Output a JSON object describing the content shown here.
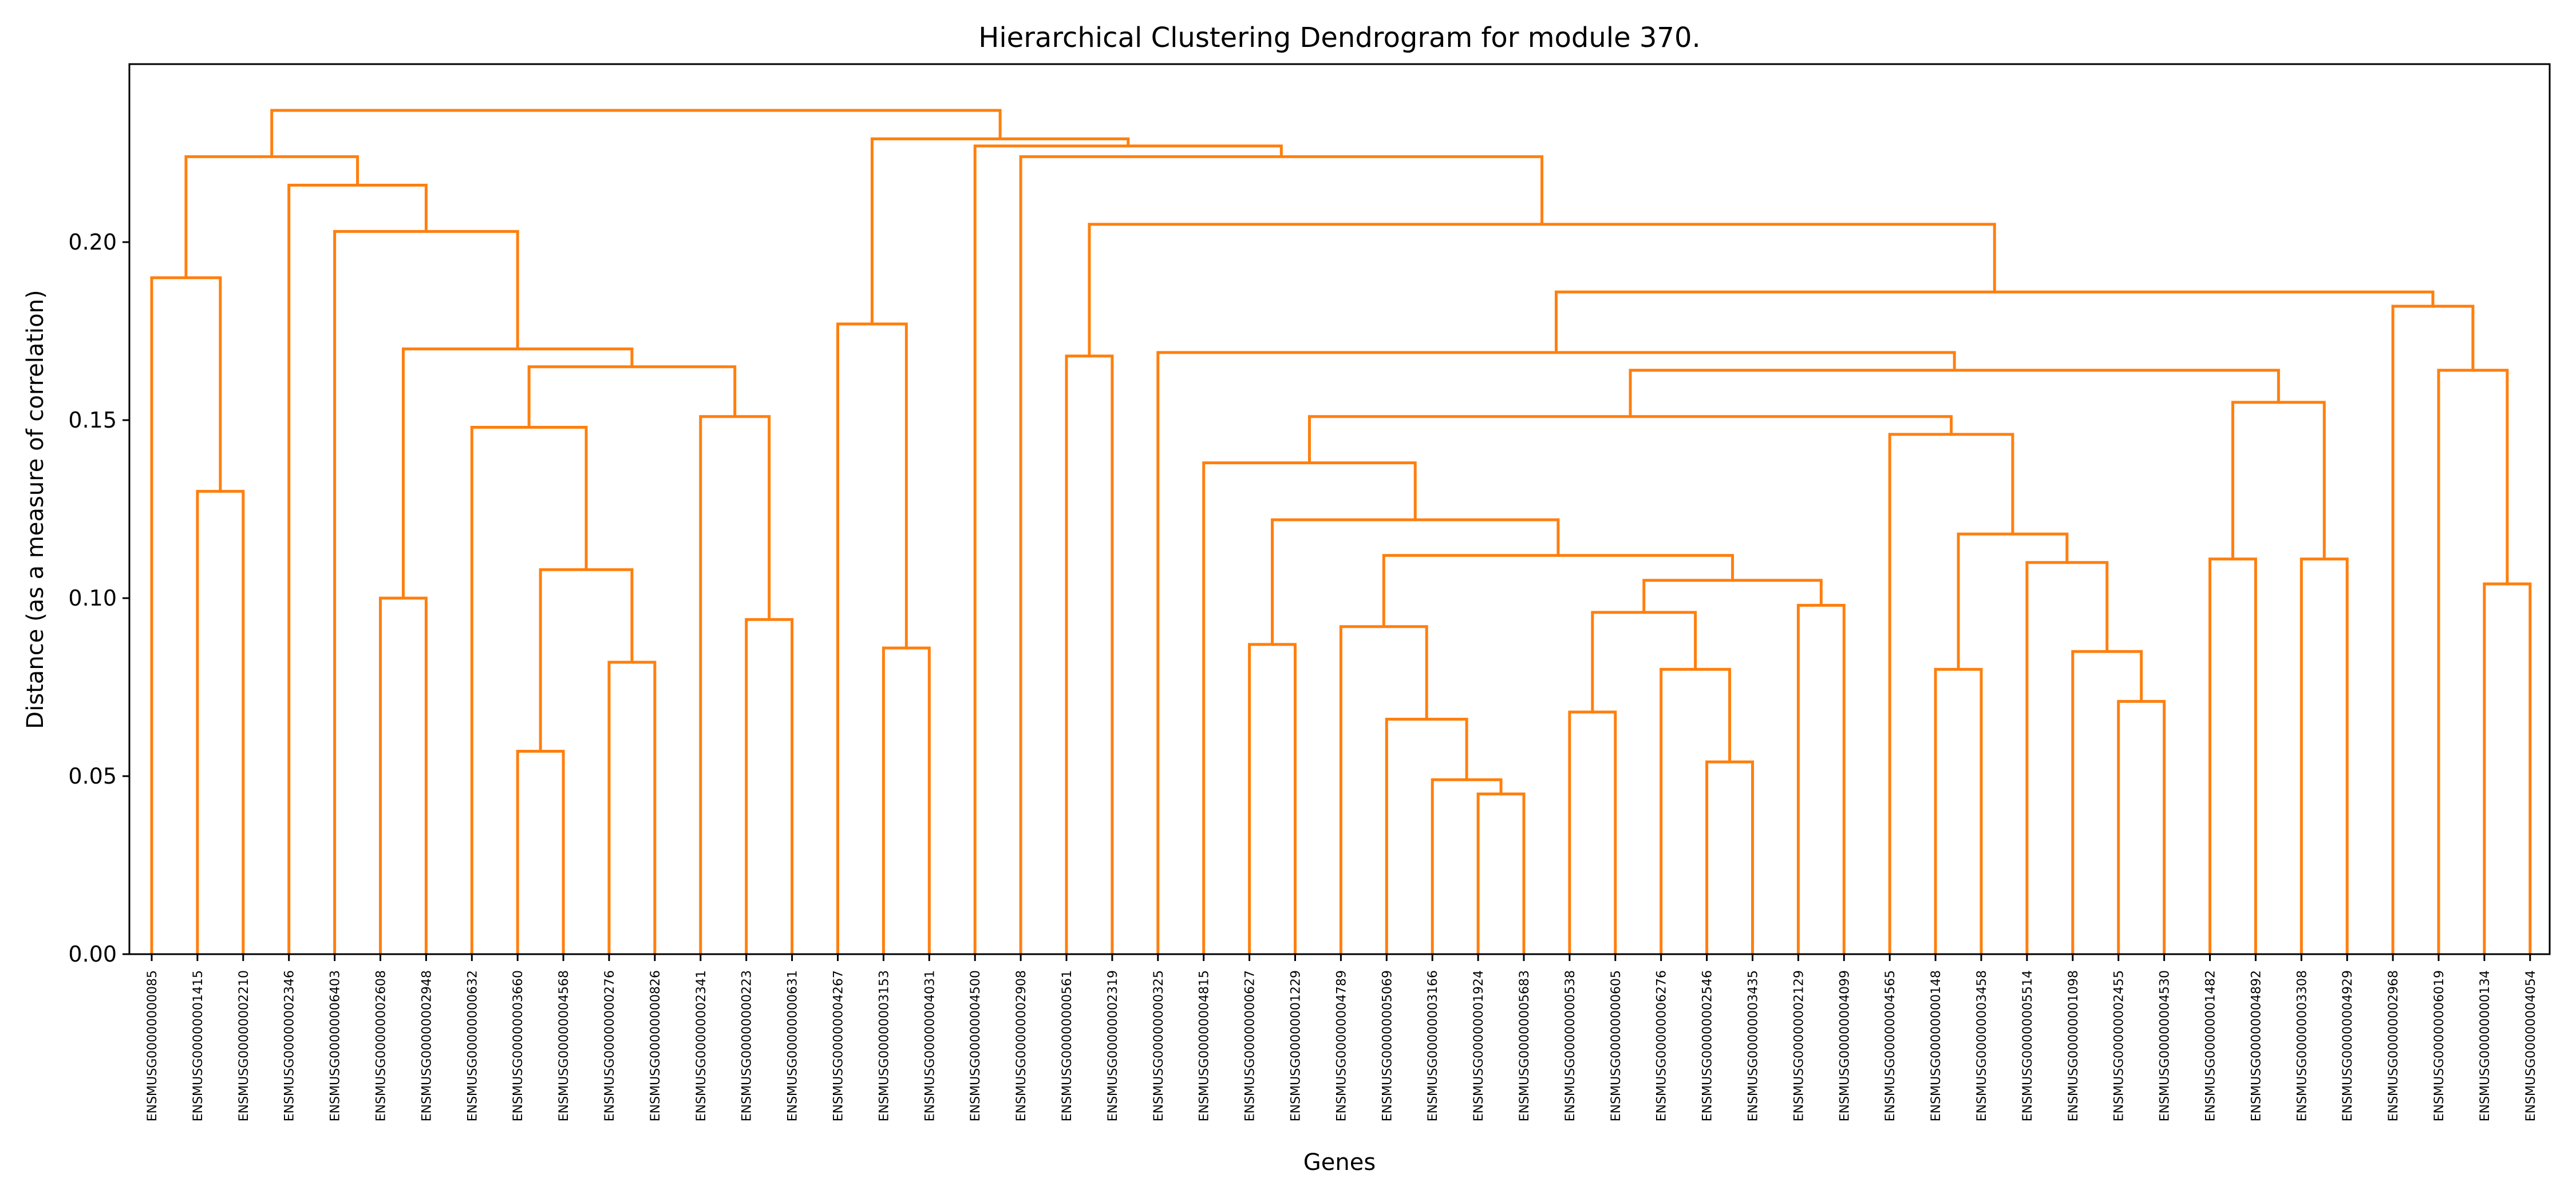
{
  "chart_data": {
    "type": "dendrogram",
    "title": "Hierarchical Clustering Dendrogram for module 370.",
    "xlabel": "Genes",
    "ylabel": "Distance (as a measure of correlation)",
    "ylim": [
      0,
      0.25
    ],
    "yticks": [
      0.0,
      0.05,
      0.1,
      0.15,
      0.2
    ],
    "ytick_labels": [
      "0.00",
      "0.05",
      "0.10",
      "0.15",
      "0.20"
    ],
    "grid": false,
    "link_color": "#ff7f0e",
    "leaves": [
      "ENSMUSG00000000085",
      "ENSMUSG00000001415",
      "ENSMUSG00000002210",
      "ENSMUSG00000002346",
      "ENSMUSG00000006403",
      "ENSMUSG00000002608",
      "ENSMUSG00000002948",
      "ENSMUSG00000000632",
      "ENSMUSG00000003660",
      "ENSMUSG00000004568",
      "ENSMUSG00000000276",
      "ENSMUSG00000000826",
      "ENSMUSG00000002341",
      "ENSMUSG00000000223",
      "ENSMUSG00000000631",
      "ENSMUSG00000004267",
      "ENSMUSG00000003153",
      "ENSMUSG00000004031",
      "ENSMUSG00000004500",
      "ENSMUSG00000002908",
      "ENSMUSG00000000561",
      "ENSMUSG00000002319",
      "ENSMUSG00000000325",
      "ENSMUSG00000004815",
      "ENSMUSG00000000627",
      "ENSMUSG00000001229",
      "ENSMUSG00000004789",
      "ENSMUSG00000005069",
      "ENSMUSG00000003166",
      "ENSMUSG00000001924",
      "ENSMUSG00000005683",
      "ENSMUSG00000000538",
      "ENSMUSG00000000605",
      "ENSMUSG00000006276",
      "ENSMUSG00000002546",
      "ENSMUSG00000003435",
      "ENSMUSG00000002129",
      "ENSMUSG00000004099",
      "ENSMUSG00000004565",
      "ENSMUSG00000000148",
      "ENSMUSG00000003458",
      "ENSMUSG00000005514",
      "ENSMUSG00000001098",
      "ENSMUSG00000002455",
      "ENSMUSG00000004530",
      "ENSMUSG00000001482",
      "ENSMUSG00000004892",
      "ENSMUSG00000003308",
      "ENSMUSG00000004929",
      "ENSMUSG00000002968",
      "ENSMUSG00000006019",
      "ENSMUSG00000000134",
      "ENSMUSG00000004054"
    ],
    "merges": [
      {
        "id": "A",
        "left": 1,
        "right": 2,
        "height": 0.13
      },
      {
        "id": "B",
        "left": 0,
        "right": "A",
        "height": 0.19
      },
      {
        "id": "C",
        "left": 5,
        "right": 6,
        "height": 0.1
      },
      {
        "id": "D",
        "left": 8,
        "right": 9,
        "height": 0.057
      },
      {
        "id": "E",
        "left": 10,
        "right": 11,
        "height": 0.082
      },
      {
        "id": "F",
        "left": "D",
        "right": "E",
        "height": 0.108
      },
      {
        "id": "G",
        "left": 7,
        "right": "F",
        "height": 0.148
      },
      {
        "id": "H",
        "left": 13,
        "right": 14,
        "height": 0.094
      },
      {
        "id": "I",
        "left": 12,
        "right": "H",
        "height": 0.151
      },
      {
        "id": "J",
        "left": "G",
        "right": "I",
        "height": 0.165
      },
      {
        "id": "K",
        "left": "C",
        "right": "J",
        "height": 0.17
      },
      {
        "id": "L",
        "left": "K",
        "right": "M_leaf_placeholder",
        "height": 0.203
      },
      {
        "id": "N",
        "left": 16,
        "right": 17,
        "height": 0.086
      },
      {
        "id": "O",
        "left": 15,
        "right": "N",
        "height": 0.177
      },
      {
        "id": "P",
        "left": 20,
        "right": 21,
        "height": 0.168
      },
      {
        "id": "Q",
        "left": 24,
        "right": 25,
        "height": 0.087
      },
      {
        "id": "R",
        "left": 29,
        "right": 30,
        "height": 0.045
      },
      {
        "id": "S",
        "left": 28,
        "right": "R",
        "height": 0.049
      },
      {
        "id": "T",
        "left": 27,
        "right": "S",
        "height": 0.066
      },
      {
        "id": "U",
        "left": 26,
        "right": "T",
        "height": 0.092
      },
      {
        "id": "V",
        "left": 31,
        "right": 32,
        "height": 0.068
      },
      {
        "id": "W",
        "left": 34,
        "right": 35,
        "height": 0.054
      },
      {
        "id": "X",
        "left": 33,
        "right": "W",
        "height": 0.08
      },
      {
        "id": "Y",
        "left": "V",
        "right": "X",
        "height": 0.096
      },
      {
        "id": "Z",
        "left": 36,
        "right": 37,
        "height": 0.098
      },
      {
        "id": "AA",
        "left": "Y",
        "right": "Z",
        "height": 0.105
      },
      {
        "id": "AB",
        "left": "U",
        "right": "AA",
        "height": 0.112
      },
      {
        "id": "AC",
        "left": "Q",
        "right": "AB",
        "height": 0.122
      },
      {
        "id": "AD",
        "left": 23,
        "right": "AC",
        "height": 0.138
      },
      {
        "id": "AE",
        "left": 39,
        "right": 40,
        "height": 0.08
      },
      {
        "id": "AF",
        "left": 43,
        "right": 44,
        "height": 0.071
      },
      {
        "id": "AG",
        "left": 42,
        "right": "AF",
        "height": 0.085
      },
      {
        "id": "AH",
        "left": 41,
        "right": "AG",
        "height": 0.11
      },
      {
        "id": "AI",
        "left": "AE",
        "right": "AH",
        "height": 0.118
      },
      {
        "id": "AJ",
        "left": 38,
        "right": "AI",
        "height": 0.146
      },
      {
        "id": "AK",
        "left": "AD",
        "right": "AJ",
        "height": 0.151
      },
      {
        "id": "AL",
        "left": 45,
        "right": 46,
        "height": 0.111
      },
      {
        "id": "AM",
        "left": 47,
        "right": 48,
        "height": 0.111
      },
      {
        "id": "AN",
        "left": "AL",
        "right": "AM",
        "height": 0.155
      },
      {
        "id": "AO",
        "left": "AK",
        "right": "AN",
        "height": 0.164
      },
      {
        "id": "AP",
        "left": 22,
        "right": "AO",
        "height": 0.169
      },
      {
        "id": "AQ",
        "left": 51,
        "right": 52,
        "height": 0.104
      },
      {
        "id": "AR",
        "left": 50,
        "right": "AQ",
        "height": 0.164
      },
      {
        "id": "AS",
        "left": 49,
        "right": "AR",
        "height": 0.182
      },
      {
        "id": "AT",
        "left": "AP",
        "right": "AS",
        "height": 0.186
      },
      {
        "id": "AU",
        "left": "P",
        "right": "AT",
        "height": 0.205
      },
      {
        "id": "AV",
        "left": 19,
        "right": "AU",
        "height": 0.224
      },
      {
        "id": "AW",
        "left": 18,
        "right": "AV",
        "height": 0.227
      },
      {
        "id": "AX",
        "left": "O",
        "right": "AW",
        "height": 0.229
      }
    ],
    "top_merges": [
      {
        "id": "L2",
        "left": 4,
        "right": "K",
        "height": 0.203
      },
      {
        "id": "M2",
        "left": 3,
        "right": "L2",
        "height": 0.216
      },
      {
        "id": "N2",
        "left": "B",
        "right": "M2",
        "height": 0.224
      },
      {
        "id": "ROOT",
        "left": "N2",
        "right": "AX",
        "height": 0.237
      }
    ]
  }
}
